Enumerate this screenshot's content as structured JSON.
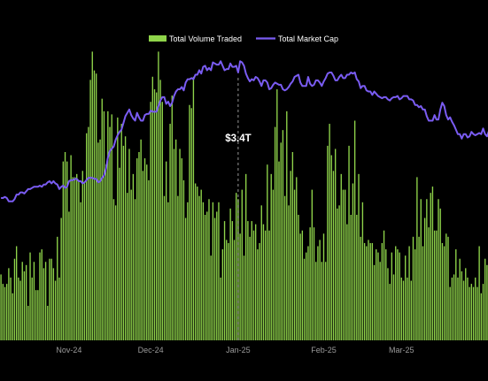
{
  "chart_data": {
    "type": "bar",
    "title": "",
    "legend": {
      "placement": "top-center"
    },
    "series": [
      {
        "name": "Total Volume Traded",
        "type": "bar",
        "axis": "left",
        "color": "#8fd44a",
        "ylim": [
          0,
          100
        ],
        "values": [
          21,
          18,
          17,
          18,
          23,
          20,
          15,
          26,
          30,
          20,
          19,
          25,
          22,
          24,
          11,
          28,
          20,
          25,
          16,
          16,
          28,
          29,
          23,
          25,
          11,
          26,
          26,
          23,
          19,
          33,
          20,
          39,
          57,
          60,
          57,
          41,
          59,
          52,
          52,
          53,
          51,
          44,
          54,
          50,
          66,
          68,
          83,
          92,
          86,
          85,
          63,
          64,
          77,
          73,
          56,
          73,
          68,
          72,
          45,
          43,
          71,
          55,
          69,
          62,
          65,
          47,
          61,
          48,
          53,
          45,
          58,
          60,
          64,
          54,
          58,
          56,
          51,
          76,
          84,
          80,
          79,
          92,
          83,
          76,
          46,
          57,
          44,
          69,
          78,
          61,
          64,
          46,
          61,
          58,
          51,
          39,
          44,
          75,
          74,
          84,
          50,
          49,
          46,
          48,
          44,
          40,
          41,
          45,
          27,
          44,
          39,
          41,
          44,
          20,
          29,
          38,
          32,
          31,
          42,
          38,
          32,
          47,
          45,
          34,
          48,
          27,
          53,
          38,
          33,
          38,
          35,
          37,
          29,
          31,
          43,
          37,
          35,
          56,
          35,
          53,
          48,
          68,
          80,
          57,
          63,
          67,
          46,
          73,
          43,
          54,
          60,
          48,
          52,
          40,
          34,
          35,
          26,
          28,
          30,
          36,
          48,
          36,
          25,
          30,
          32,
          25,
          34,
          25,
          62,
          69,
          59,
          54,
          61,
          42,
          43,
          53,
          48,
          48,
          37,
          62,
          40,
          50,
          70,
          40,
          53,
          33,
          44,
          31,
          30,
          32,
          31,
          31,
          24,
          29,
          28,
          25,
          31,
          35,
          29,
          23,
          18,
          28,
          21,
          30,
          29,
          28,
          20,
          19,
          27,
          20,
          30,
          19,
          33,
          29,
          52,
          33,
          45,
          30,
          39,
          45,
          36,
          47,
          49,
          35,
          35,
          45,
          42,
          31,
          30,
          34,
          33,
          17,
          20,
          21,
          29,
          20,
          26,
          22,
          19,
          23,
          20,
          17,
          18,
          17,
          20,
          17,
          30,
          15,
          18,
          26,
          24
        ]
      },
      {
        "name": "Total Market Cap",
        "type": "line",
        "axis": "right",
        "unit": "T",
        "color": "#7a5cf2",
        "ylim": [
          1.0,
          3.8
        ],
        "values": [
          2.27,
          2.27,
          2.28,
          2.27,
          2.24,
          2.24,
          2.24,
          2.26,
          2.3,
          2.3,
          2.32,
          2.32,
          2.31,
          2.33,
          2.35,
          2.35,
          2.36,
          2.37,
          2.37,
          2.37,
          2.38,
          2.37,
          2.39,
          2.39,
          2.41,
          2.42,
          2.4,
          2.42,
          2.4,
          2.39,
          2.35,
          2.37,
          2.38,
          2.36,
          2.37,
          2.42,
          2.43,
          2.43,
          2.44,
          2.44,
          2.42,
          2.42,
          2.4,
          2.41,
          2.43,
          2.45,
          2.45,
          2.45,
          2.44,
          2.44,
          2.41,
          2.42,
          2.45,
          2.47,
          2.53,
          2.63,
          2.69,
          2.71,
          2.73,
          2.79,
          2.83,
          2.86,
          2.88,
          2.94,
          3.0,
          3.03,
          3.06,
          3.01,
          2.98,
          2.96,
          3.03,
          2.99,
          2.96,
          2.96,
          3.01,
          3.02,
          3.02,
          3.05,
          3.04,
          3.04,
          3.04,
          3.09,
          3.14,
          3.17,
          3.17,
          3.11,
          3.13,
          3.09,
          3.12,
          3.18,
          3.22,
          3.24,
          3.24,
          3.26,
          3.23,
          3.3,
          3.33,
          3.33,
          3.34,
          3.33,
          3.37,
          3.37,
          3.41,
          3.38,
          3.44,
          3.45,
          3.41,
          3.43,
          3.41,
          3.48,
          3.47,
          3.46,
          3.46,
          3.49,
          3.45,
          3.41,
          3.42,
          3.42,
          3.47,
          3.44,
          3.44,
          3.45,
          3.39,
          3.49,
          3.48,
          3.45,
          3.38,
          3.34,
          3.31,
          3.33,
          3.32,
          3.35,
          3.34,
          3.31,
          3.27,
          3.32,
          3.32,
          3.3,
          3.24,
          3.25,
          3.28,
          3.3,
          3.29,
          3.28,
          3.28,
          3.24,
          3.23,
          3.24,
          3.26,
          3.29,
          3.31,
          3.35,
          3.36,
          3.37,
          3.3,
          3.27,
          3.27,
          3.27,
          3.35,
          3.29,
          3.27,
          3.28,
          3.32,
          3.32,
          3.3,
          3.27,
          3.31,
          3.34,
          3.38,
          3.39,
          3.39,
          3.36,
          3.32,
          3.32,
          3.35,
          3.37,
          3.34,
          3.34,
          3.37,
          3.37,
          3.39,
          3.38,
          3.39,
          3.33,
          3.31,
          3.25,
          3.27,
          3.27,
          3.23,
          3.22,
          3.22,
          3.19,
          3.22,
          3.2,
          3.18,
          3.17,
          3.16,
          3.17,
          3.17,
          3.15,
          3.14,
          3.16,
          3.17,
          3.17,
          3.18,
          3.15,
          3.16,
          3.18,
          3.18,
          3.18,
          3.15,
          3.15,
          3.14,
          3.1,
          3.1,
          3.08,
          3.09,
          3.06,
          3.06,
          3.0,
          2.96,
          2.96,
          2.96,
          3.01,
          2.97,
          2.97,
          3.06,
          3.12,
          3.09,
          3.01,
          2.97,
          2.99,
          2.95,
          2.92,
          2.88,
          2.84,
          2.84,
          2.8,
          2.84,
          2.84,
          2.81,
          2.82,
          2.86,
          2.84,
          2.83,
          2.84,
          2.85,
          2.84,
          2.89,
          2.84,
          2.82,
          2.87,
          2.88,
          2.88,
          2.89,
          2.9,
          2.9
        ]
      }
    ],
    "x_tick_labels": [
      {
        "label": "Nov-24",
        "index": 35
      },
      {
        "label": "Dec-24",
        "index": 77
      },
      {
        "label": "Jan-25",
        "index": 122
      },
      {
        "label": "Feb-25",
        "index": 166
      },
      {
        "label": "Mar-25",
        "index": 206
      }
    ],
    "annotation": {
      "label": "$3.4T",
      "index": 122
    },
    "grid": false
  }
}
